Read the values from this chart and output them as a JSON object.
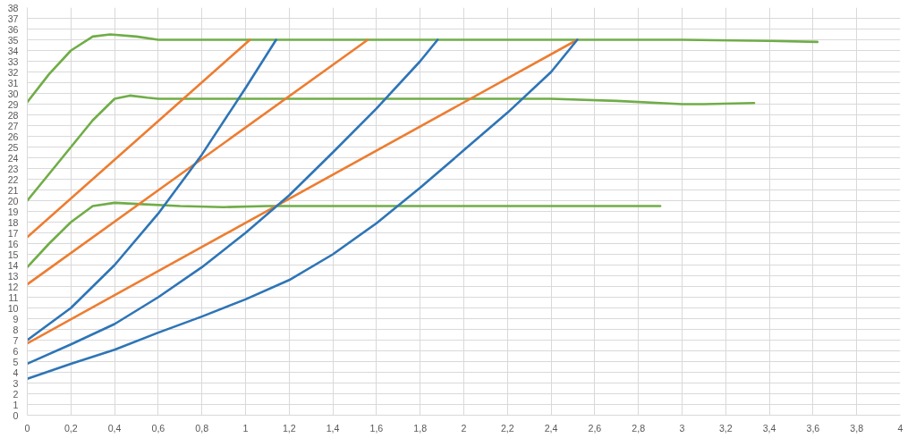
{
  "chart_data": {
    "type": "line",
    "xlim": [
      0,
      4
    ],
    "ylim": [
      0,
      38
    ],
    "xticks": [
      0,
      {
        "value": 0.2,
        "label": "0,2"
      },
      {
        "value": 0.4,
        "label": "0,4"
      },
      {
        "value": 0.6,
        "label": "0,6"
      },
      {
        "value": 0.8,
        "label": "0,8"
      },
      1,
      {
        "value": 1.2,
        "label": "1,2"
      },
      {
        "value": 1.4,
        "label": "1,4"
      },
      {
        "value": 1.6,
        "label": "1,6"
      },
      {
        "value": 1.8,
        "label": "1,8"
      },
      2,
      {
        "value": 2.2,
        "label": "2,2"
      },
      {
        "value": 2.4,
        "label": "2,4"
      },
      {
        "value": 2.6,
        "label": "2,6"
      },
      {
        "value": 2.8,
        "label": "2,8"
      },
      3,
      {
        "value": 3.2,
        "label": "3,2"
      },
      {
        "value": 3.4,
        "label": "3,4"
      },
      {
        "value": 3.6,
        "label": "3,6"
      },
      {
        "value": 3.8,
        "label": "3,8"
      },
      4
    ],
    "yticks": [
      0,
      1,
      2,
      3,
      4,
      5,
      6,
      7,
      8,
      9,
      10,
      11,
      12,
      13,
      14,
      15,
      16,
      17,
      18,
      19,
      20,
      21,
      22,
      23,
      24,
      25,
      26,
      27,
      28,
      29,
      30,
      31,
      32,
      33,
      34,
      35,
      36,
      37,
      38
    ],
    "grid": true,
    "marker": "none",
    "line_style": "solid",
    "series": [
      {
        "color": "#70ad47",
        "x": [
          0,
          0.1,
          0.2,
          0.3,
          0.38,
          0.5,
          0.6,
          1,
          2,
          3,
          3.4,
          3.62
        ],
        "values": [
          29.2,
          31.8,
          34,
          35.3,
          35.5,
          35.3,
          35,
          35,
          35,
          35,
          34.9,
          34.8
        ]
      },
      {
        "color": "#70ad47",
        "x": [
          0,
          0.1,
          0.2,
          0.3,
          0.4,
          0.47,
          0.55,
          0.6,
          1.5,
          2.4,
          2.7,
          3.0,
          3.1,
          3.33
        ],
        "values": [
          20,
          22.5,
          25,
          27.5,
          29.5,
          29.8,
          29.6,
          29.5,
          29.5,
          29.5,
          29.3,
          29.0,
          29.0,
          29.1
        ]
      },
      {
        "color": "#70ad47",
        "x": [
          0,
          0.1,
          0.2,
          0.3,
          0.4,
          0.5,
          0.7,
          0.9,
          1.1,
          2.9
        ],
        "values": [
          13.8,
          16,
          18,
          19.5,
          19.8,
          19.7,
          19.5,
          19.4,
          19.5,
          19.5
        ]
      },
      {
        "color": "#ed7d31",
        "x": [
          0,
          1.02
        ],
        "values": [
          16.6,
          35
        ]
      },
      {
        "color": "#ed7d31",
        "x": [
          0,
          1.56
        ],
        "values": [
          12.2,
          35
        ]
      },
      {
        "color": "#ed7d31",
        "x": [
          0,
          2.52
        ],
        "values": [
          6.7,
          35
        ]
      },
      {
        "color": "#2e75b6",
        "x": [
          0,
          0.2,
          0.4,
          0.6,
          0.8,
          1.0,
          1.14
        ],
        "values": [
          7,
          10,
          14,
          18.8,
          24.3,
          30.5,
          35
        ]
      },
      {
        "color": "#2e75b6",
        "x": [
          0,
          0.2,
          0.4,
          0.6,
          0.8,
          1.0,
          1.2,
          1.4,
          1.6,
          1.8,
          1.88
        ],
        "values": [
          4.8,
          6.6,
          8.5,
          11,
          13.8,
          17,
          20.5,
          24.5,
          28.6,
          33,
          35
        ]
      },
      {
        "color": "#2e75b6",
        "x": [
          0,
          0.2,
          0.4,
          0.6,
          0.8,
          1.0,
          1.2,
          1.4,
          1.6,
          1.8,
          2.0,
          2.2,
          2.4,
          2.52
        ],
        "values": [
          3.4,
          4.8,
          6.1,
          7.7,
          9.2,
          10.8,
          12.6,
          15,
          17.9,
          21.2,
          24.7,
          28.2,
          32,
          35
        ]
      }
    ]
  }
}
